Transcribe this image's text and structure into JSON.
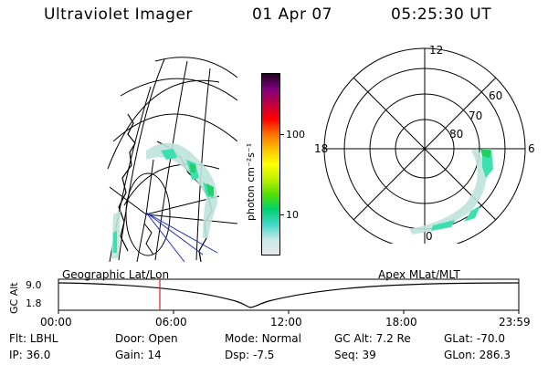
{
  "header": {
    "title": "Ultraviolet Imager",
    "date": "01 Apr 07",
    "time": "05:25:30 UT"
  },
  "colorbar": {
    "unit_label": "photon cm⁻²s⁻¹",
    "tick_labels": [
      "100",
      "10"
    ],
    "colors": [
      "#e8e8e8",
      "#c8e8e8",
      "#40d8c8",
      "#00d070",
      "#50e000",
      "#c0f000",
      "#ffff00",
      "#ffc000",
      "#ff7000",
      "#ff0000",
      "#c00040",
      "#800080",
      "#200020"
    ]
  },
  "polar": {
    "mlt_labels": {
      "top": "12",
      "left": "18",
      "right": "6",
      "bottom": "0"
    },
    "lat_labels": [
      "60",
      "70",
      "80"
    ]
  },
  "timeline": {
    "left_label": "Geographic Lat/Lon",
    "right_label": "Apex MLat/MLT",
    "y_axis_title": "GC Alt",
    "y_ticks": [
      "9.0",
      "1.8"
    ],
    "x_ticks": [
      "00:00",
      "06:00",
      "12:00",
      "18:00",
      "23:59"
    ],
    "marker_time": "05:25:30"
  },
  "status": {
    "row1": [
      {
        "key": "Flt:",
        "value": "LBHL"
      },
      {
        "key": "Door:",
        "value": "Open"
      },
      {
        "key": "Mode:",
        "value": "Normal"
      },
      {
        "key": "GC Alt:",
        "value": "7.2 Re"
      },
      {
        "key": "GLat:",
        "value": "-70.0"
      }
    ],
    "row2": [
      {
        "key": "IP:",
        "value": "36.0"
      },
      {
        "key": "Gain:",
        "value": "14"
      },
      {
        "key": "Dsp:",
        "value": "-7.5"
      },
      {
        "key": "Seq:",
        "value": "39"
      },
      {
        "key": "GLon:",
        "value": "286.3"
      }
    ]
  }
}
